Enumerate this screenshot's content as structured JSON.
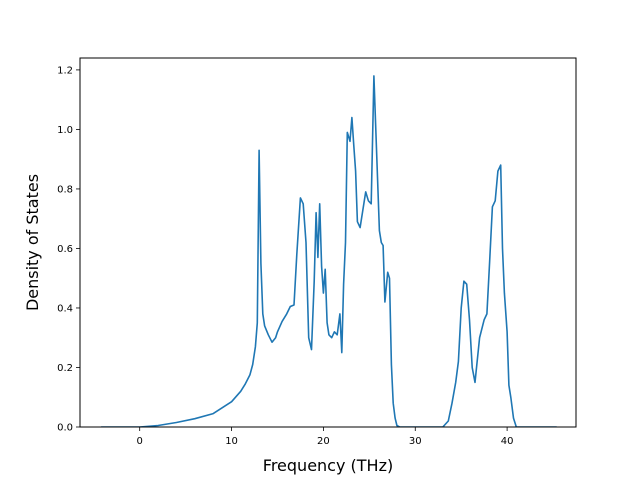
{
  "chart_data": {
    "type": "line",
    "title": "",
    "xlabel": "Frequency (THz)",
    "ylabel": "Density of States",
    "xlim": [
      -6.5,
      47.5
    ],
    "ylim": [
      0,
      1.24
    ],
    "xticks": [
      0,
      10,
      20,
      30,
      40
    ],
    "yticks": [
      0.0,
      0.2,
      0.4,
      0.6,
      0.8,
      1.0,
      1.2
    ],
    "xtick_labels": [
      "0",
      "10",
      "20",
      "30",
      "40"
    ],
    "ytick_labels": [
      "0.0",
      "0.2",
      "0.4",
      "0.6",
      "0.8",
      "1.0",
      "1.2"
    ],
    "grid": false,
    "series": [
      {
        "color": "#1f77b4",
        "x": [
          -4.2,
          0,
          2,
          4,
          6,
          8,
          10,
          11,
          11.5,
          12,
          12.3,
          12.6,
          12.8,
          13.0,
          13.2,
          13.4,
          13.6,
          14.0,
          14.4,
          14.8,
          15.0,
          15.5,
          16.0,
          16.4,
          16.8,
          17.1,
          17.5,
          17.8,
          18.1,
          18.4,
          18.7,
          19.0,
          19.2,
          19.4,
          19.6,
          19.8,
          20.0,
          20.2,
          20.4,
          20.6,
          20.9,
          21.2,
          21.5,
          21.8,
          22.0,
          22.2,
          22.4,
          22.6,
          22.9,
          23.1,
          23.3,
          23.5,
          23.7,
          24.0,
          24.3,
          24.6,
          24.9,
          25.2,
          25.5,
          25.7,
          25.9,
          26.1,
          26.3,
          26.5,
          26.7,
          27.0,
          27.2,
          27.4,
          27.6,
          27.8,
          28.0,
          28.3,
          28.6,
          29.0,
          29.5,
          30.0,
          31.0,
          32.0,
          33.0,
          33.6,
          34.0,
          34.4,
          34.7,
          35.0,
          35.3,
          35.6,
          35.9,
          36.2,
          36.5,
          37.0,
          37.5,
          37.8,
          38.1,
          38.4,
          38.7,
          39.0,
          39.3,
          39.5,
          39.7,
          40.0,
          40.2,
          40.4,
          40.7,
          41.0,
          41.3,
          41.6,
          42.0,
          43.0,
          45.4
        ],
        "y": [
          0.0,
          0.0,
          0.005,
          0.015,
          0.028,
          0.045,
          0.085,
          0.12,
          0.145,
          0.175,
          0.21,
          0.27,
          0.35,
          0.93,
          0.55,
          0.38,
          0.34,
          0.31,
          0.285,
          0.3,
          0.32,
          0.355,
          0.38,
          0.405,
          0.41,
          0.58,
          0.77,
          0.75,
          0.62,
          0.3,
          0.26,
          0.49,
          0.72,
          0.57,
          0.75,
          0.54,
          0.45,
          0.53,
          0.35,
          0.31,
          0.3,
          0.32,
          0.31,
          0.38,
          0.25,
          0.48,
          0.62,
          0.99,
          0.96,
          1.04,
          0.95,
          0.86,
          0.69,
          0.67,
          0.73,
          0.79,
          0.76,
          0.75,
          1.18,
          1.0,
          0.83,
          0.66,
          0.62,
          0.61,
          0.42,
          0.52,
          0.5,
          0.21,
          0.08,
          0.03,
          0.005,
          0.0,
          0.0,
          0.0,
          0.0,
          0.0,
          0.0,
          0.0,
          0.0,
          0.02,
          0.08,
          0.15,
          0.22,
          0.4,
          0.49,
          0.48,
          0.36,
          0.2,
          0.15,
          0.3,
          0.36,
          0.38,
          0.56,
          0.74,
          0.76,
          0.86,
          0.88,
          0.6,
          0.45,
          0.32,
          0.14,
          0.1,
          0.03,
          0.0,
          0.0,
          0.0,
          0.0,
          0.0,
          0.0
        ]
      }
    ]
  }
}
